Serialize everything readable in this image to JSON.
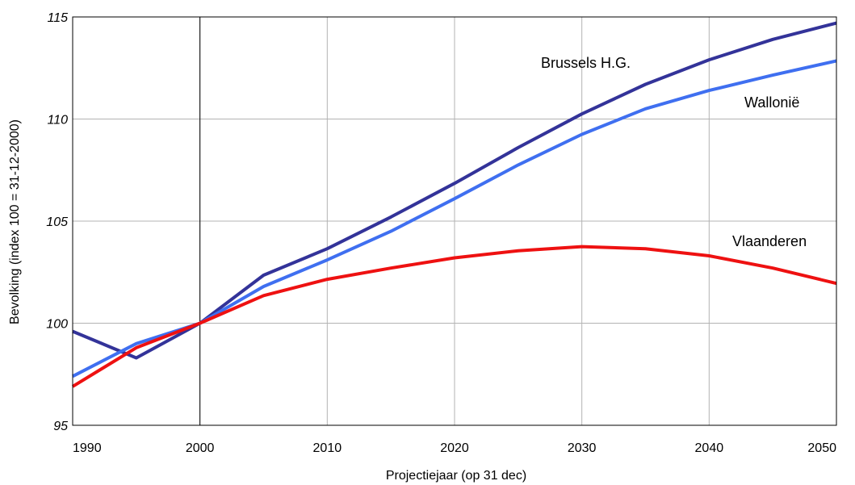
{
  "chart_data": {
    "type": "line",
    "xlabel": "Projectiejaar (op 31 dec)",
    "ylabel": "Bevolking (index 100 = 31-12-2000)",
    "xlim": [
      1990,
      2050
    ],
    "ylim": [
      95,
      115
    ],
    "x_ticks": [
      1990,
      2000,
      2010,
      2020,
      2030,
      2040,
      2050
    ],
    "y_ticks": [
      95,
      100,
      105,
      110,
      115
    ],
    "reference_line_x": 2000,
    "grid": true,
    "x": [
      1990,
      1995,
      2000,
      2005,
      2010,
      2015,
      2020,
      2025,
      2030,
      2035,
      2040,
      2045,
      2050
    ],
    "series": [
      {
        "name": "Brussels H.G.",
        "color": "#333399",
        "values": [
          99.6,
          98.3,
          100.0,
          102.35,
          103.65,
          105.2,
          106.85,
          108.6,
          110.25,
          111.7,
          112.9,
          113.9,
          114.7
        ]
      },
      {
        "name": "Wallonië",
        "color": "#3f6ff0",
        "values": [
          97.4,
          99.0,
          100.0,
          101.8,
          103.1,
          104.5,
          106.1,
          107.75,
          109.25,
          110.5,
          111.4,
          112.15,
          112.85
        ]
      },
      {
        "name": "Vlaanderen",
        "color": "#ee1111",
        "values": [
          96.9,
          98.8,
          100.0,
          101.35,
          102.15,
          102.7,
          103.2,
          103.55,
          103.75,
          103.65,
          103.3,
          102.7,
          101.95
        ]
      }
    ]
  }
}
